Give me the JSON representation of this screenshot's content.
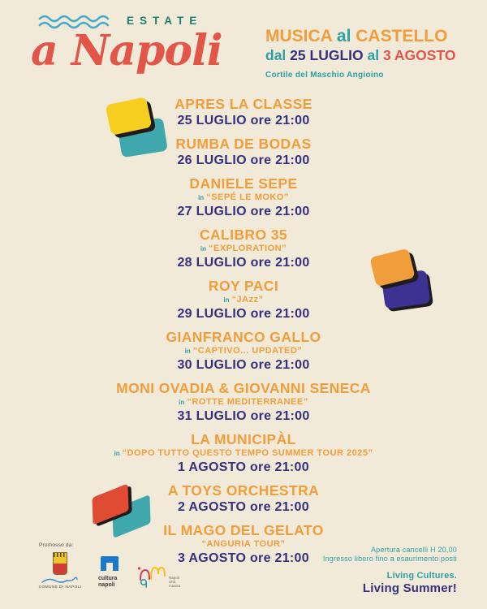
{
  "palette": {
    "bg": "#f2ead8",
    "red": "#e25549",
    "teal": "#2ca0a4",
    "green": "#1d8170",
    "wave_blue": "#45aacb",
    "orange": "#f09d3c",
    "navy": "#34307e",
    "indigo": "#3d3191",
    "yellow": "#f5ce1e",
    "teal_shape": "#3fa8ad",
    "red_shape": "#e04b33",
    "ink": "#1f1d1b"
  },
  "brand": {
    "estate": "ESTATE",
    "name": "a Napoli"
  },
  "header": {
    "musica": "MUSICA",
    "al1": "al",
    "castello": "CASTELLO",
    "dal": "dal",
    "from_date": "25 LUGLIO",
    "al2": "al",
    "to_date": "3 AGOSTO",
    "venue": "Cortile del Maschio Angioino"
  },
  "events": [
    {
      "title": "APRES LA CLASSE",
      "date": "25 LUGLIO ore 21:00"
    },
    {
      "title": "RUMBA DE BODAS",
      "date": "26 LUGLIO ore 21:00"
    },
    {
      "title": "DANIELE SEPE",
      "prefix": "in",
      "subtitle": "“SEPÉ LE MOKO”",
      "date": "27 LUGLIO ore 21:00"
    },
    {
      "title": "CALIBRO 35",
      "prefix": "in",
      "subtitle": "“EXPLORATION”",
      "date": "28 LUGLIO ore 21:00"
    },
    {
      "title": "ROY PACI",
      "prefix": "in",
      "subtitle": "“JAzz”",
      "date": "29 LUGLIO ore 21:00"
    },
    {
      "title": "GIANFRANCO GALLO",
      "prefix": "in",
      "subtitle": "“CAPTIVO... UPDATED”",
      "date": "30 LUGLIO ore 21:00"
    },
    {
      "title": "MONI OVADIA & GIOVANNI SENECA",
      "prefix": "in",
      "subtitle": "“ROTTE MEDITERRANEE”",
      "date": "31 LUGLIO ore 21:00"
    },
    {
      "title": "LA MUNICIPÀL",
      "prefix": "in",
      "subtitle": "“DOPO TUTTO QUESTO TEMPO SUMMER TOUR 2025”",
      "date": "1 AGOSTO ore 21:00"
    },
    {
      "title": "A TOYS ORCHESTRA",
      "date": "2 AGOSTO ore 21:00"
    },
    {
      "title": "IL MAGO DEL GELATO",
      "subtitle": "“ANGURIA TOUR”",
      "date": "3 AGOSTO ore 21:00"
    }
  ],
  "footer": {
    "promoted_by": "Promosso da:",
    "logos": [
      {
        "name": "comune-di-napoli",
        "label": "COMUNE DI NAPOLI"
      },
      {
        "name": "cultura-napoli",
        "label": "cultura napoli"
      },
      {
        "name": "napoli-citta-musica",
        "label": "Napoli città musica"
      }
    ],
    "info_line1": "Apertura cancelli H 20,00",
    "info_line2": "Ingresso libero fino a esaurimento posti",
    "tagline1": "Living Cultures.",
    "tagline2": "Living Summer!"
  }
}
